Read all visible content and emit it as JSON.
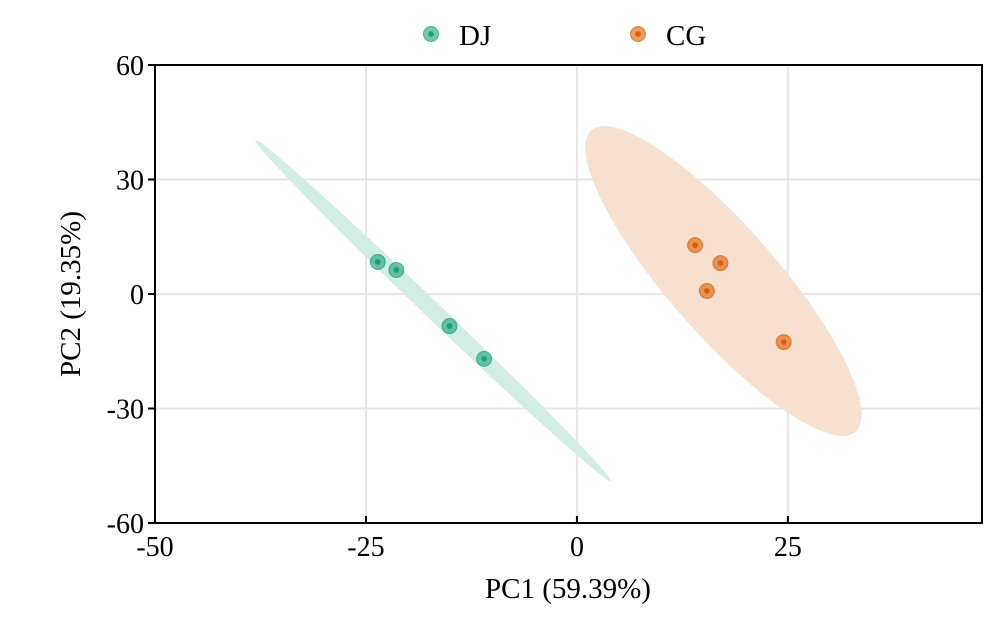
{
  "chart_data": {
    "type": "scatter",
    "title": "",
    "xlabel": "PC1 (59.39%)",
    "ylabel": "PC2 (19.35%)",
    "xlim": [
      -50,
      48
    ],
    "ylim": [
      -60,
      60
    ],
    "xticks": [
      -50,
      -25,
      0,
      25
    ],
    "xtick_labels": [
      "-50",
      "-25",
      "0",
      "25"
    ],
    "yticks": [
      -60,
      -30,
      0,
      30,
      60
    ],
    "ytick_labels": [
      "-60",
      "-30",
      "0",
      "30",
      "60"
    ],
    "grid": true,
    "legend_position": "top-center",
    "series": [
      {
        "name": "DJ",
        "color": "#1b9e77",
        "ellipse_color": "#d2ede3",
        "points": [
          {
            "x": -23.6,
            "y": 8.4
          },
          {
            "x": -21.4,
            "y": 6.3
          },
          {
            "x": -15.1,
            "y": -8.4
          },
          {
            "x": -11.0,
            "y": -17.0
          }
        ],
        "ellipse": {
          "major_end_a": [
            -38.1,
            40.3
          ],
          "major_end_b": [
            4.0,
            -49.0
          ],
          "minor_half_width_ratio": 0.034
        }
      },
      {
        "name": "CG",
        "color": "#d95f02",
        "ellipse_color": "#f7e0d0",
        "points": [
          {
            "x": 14.0,
            "y": 12.8
          },
          {
            "x": 17.0,
            "y": 8.1
          },
          {
            "x": 15.4,
            "y": 0.8
          },
          {
            "x": 24.5,
            "y": -12.6
          }
        ],
        "ellipse": {
          "major_end_a": [
            1.7,
            42.9
          ],
          "major_end_b": [
            33.0,
            -36.1
          ],
          "minor_half_width_ratio": 0.27
        }
      }
    ]
  }
}
